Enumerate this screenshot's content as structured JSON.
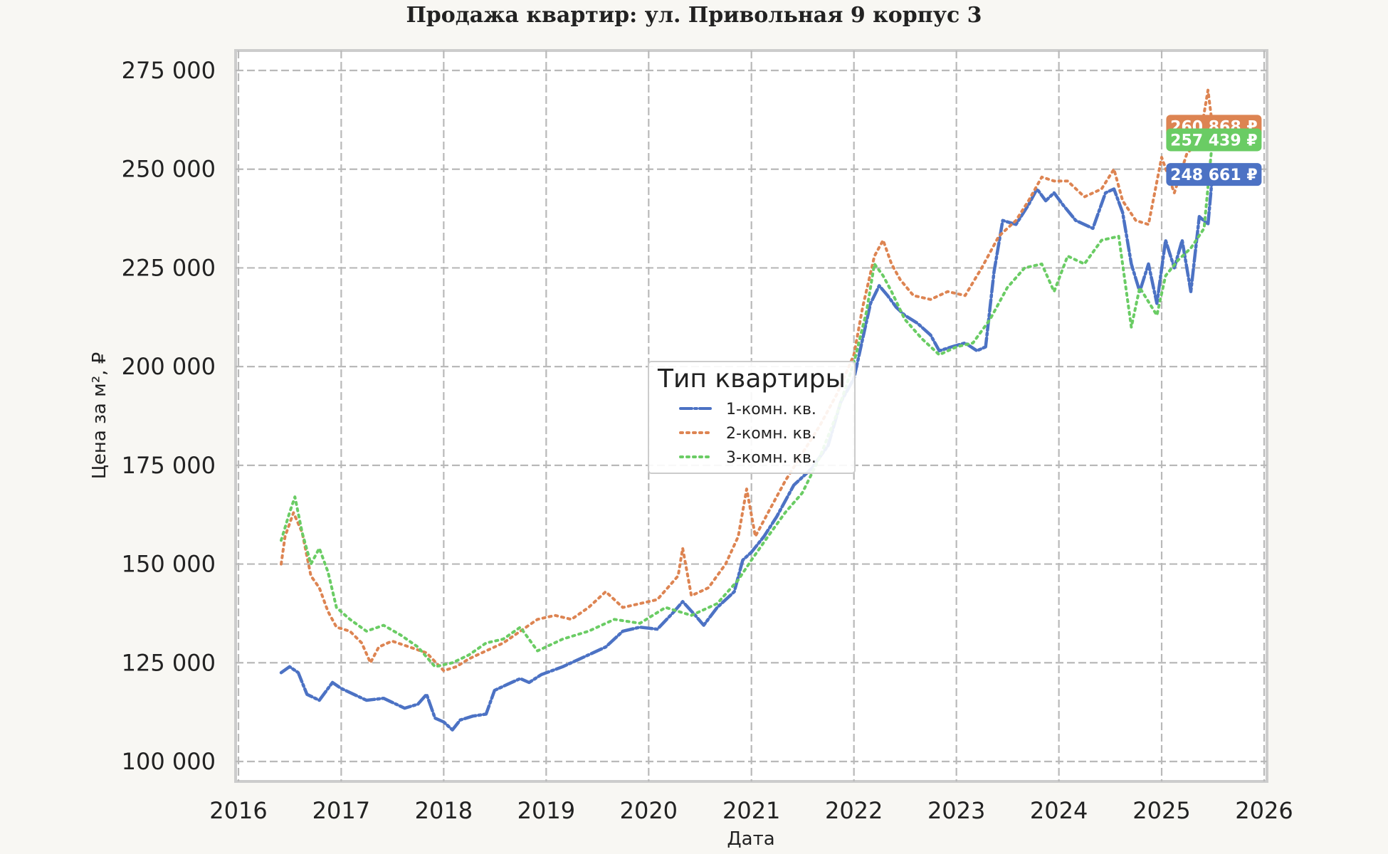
{
  "chart_data": {
    "type": "line",
    "title": "Продажа квартир: ул. Привольная 9 корпус 3",
    "xlabel": "Дата",
    "ylabel": "Цена за м², ₽",
    "xlim": [
      "2016-01-01",
      "2026-01-01"
    ],
    "ylim": [
      100000,
      275000
    ],
    "x_ticks": [
      "2016",
      "2017",
      "2018",
      "2019",
      "2020",
      "2021",
      "2022",
      "2023",
      "2024",
      "2025",
      "2026"
    ],
    "y_ticks": [
      "100 000",
      "125 000",
      "150 000",
      "175 000",
      "200 000",
      "225 000",
      "250 000",
      "275 000"
    ],
    "y_tick_values": [
      100000,
      125000,
      150000,
      175000,
      200000,
      225000,
      250000,
      275000
    ],
    "grid": true,
    "legend": {
      "title": "Тип квартиры",
      "placement": "center"
    },
    "series": [
      {
        "name": "1-комн. кв.",
        "color": "#4c72c4",
        "dash": "dashdot",
        "end_label": "248 661 ₽",
        "points": [
          [
            "2016-06-01",
            122500
          ],
          [
            "2016-07-01",
            124000
          ],
          [
            "2016-08-01",
            122500
          ],
          [
            "2016-09-01",
            117000
          ],
          [
            "2016-10-15",
            115500
          ],
          [
            "2016-12-01",
            120000
          ],
          [
            "2017-01-01",
            118500
          ],
          [
            "2017-02-15",
            117000
          ],
          [
            "2017-04-01",
            115500
          ],
          [
            "2017-06-01",
            116000
          ],
          [
            "2017-07-01",
            115000
          ],
          [
            "2017-08-15",
            113500
          ],
          [
            "2017-10-01",
            114500
          ],
          [
            "2017-11-01",
            117000
          ],
          [
            "2017-12-01",
            111000
          ],
          [
            "2018-01-01",
            110000
          ],
          [
            "2018-02-01",
            108000
          ],
          [
            "2018-03-01",
            110500
          ],
          [
            "2018-04-15",
            111500
          ],
          [
            "2018-06-01",
            112000
          ],
          [
            "2018-07-01",
            118000
          ],
          [
            "2018-08-15",
            119500
          ],
          [
            "2018-10-01",
            121000
          ],
          [
            "2018-11-01",
            120000
          ],
          [
            "2018-12-15",
            122000
          ],
          [
            "2019-03-01",
            124000
          ],
          [
            "2019-06-01",
            127000
          ],
          [
            "2019-08-01",
            129000
          ],
          [
            "2019-10-01",
            133000
          ],
          [
            "2019-12-01",
            134000
          ],
          [
            "2020-02-01",
            133500
          ],
          [
            "2020-04-01",
            138000
          ],
          [
            "2020-05-01",
            140500
          ],
          [
            "2020-06-15",
            137000
          ],
          [
            "2020-07-15",
            134500
          ],
          [
            "2020-09-01",
            139000
          ],
          [
            "2020-11-01",
            143000
          ],
          [
            "2020-12-01",
            151000
          ],
          [
            "2021-01-01",
            153000
          ],
          [
            "2021-02-15",
            157000
          ],
          [
            "2021-04-01",
            162000
          ],
          [
            "2021-06-01",
            170000
          ],
          [
            "2021-08-01",
            174000
          ],
          [
            "2021-10-01",
            180000
          ],
          [
            "2021-11-15",
            191000
          ],
          [
            "2022-01-01",
            197000
          ],
          [
            "2022-02-01",
            207000
          ],
          [
            "2022-03-01",
            216000
          ],
          [
            "2022-04-01",
            220500
          ],
          [
            "2022-05-01",
            218000
          ],
          [
            "2022-06-01",
            215000
          ],
          [
            "2022-07-01",
            213000
          ],
          [
            "2022-08-15",
            211000
          ],
          [
            "2022-10-01",
            208000
          ],
          [
            "2022-11-01",
            204000
          ],
          [
            "2022-12-15",
            205000
          ],
          [
            "2023-02-01",
            206000
          ],
          [
            "2023-03-15",
            204000
          ],
          [
            "2023-04-15",
            205000
          ],
          [
            "2023-05-15",
            224000
          ],
          [
            "2023-06-15",
            237000
          ],
          [
            "2023-08-01",
            236000
          ],
          [
            "2023-09-15",
            241000
          ],
          [
            "2023-10-15",
            245000
          ],
          [
            "2023-11-15",
            242000
          ],
          [
            "2023-12-15",
            244000
          ],
          [
            "2024-01-15",
            241000
          ],
          [
            "2024-03-01",
            237000
          ],
          [
            "2024-05-01",
            235000
          ],
          [
            "2024-06-15",
            244000
          ],
          [
            "2024-07-15",
            245000
          ],
          [
            "2024-08-15",
            239000
          ],
          [
            "2024-09-15",
            226000
          ],
          [
            "2024-10-15",
            219000
          ],
          [
            "2024-11-15",
            226000
          ],
          [
            "2024-12-15",
            216000
          ],
          [
            "2025-01-15",
            232000
          ],
          [
            "2025-02-15",
            225000
          ],
          [
            "2025-03-15",
            232000
          ],
          [
            "2025-04-15",
            219000
          ],
          [
            "2025-05-15",
            238000
          ],
          [
            "2025-06-15",
            236000
          ],
          [
            "2025-07-01",
            248661
          ]
        ]
      },
      {
        "name": "2-комн. кв.",
        "color": "#dd8452",
        "dash": "dotted",
        "end_label": "260 868 ₽",
        "points": [
          [
            "2016-06-01",
            150000
          ],
          [
            "2016-06-15",
            157000
          ],
          [
            "2016-07-15",
            163000
          ],
          [
            "2016-08-15",
            158000
          ],
          [
            "2016-09-15",
            147000
          ],
          [
            "2016-10-15",
            144000
          ],
          [
            "2016-11-15",
            138000
          ],
          [
            "2016-12-15",
            134000
          ],
          [
            "2017-02-01",
            133000
          ],
          [
            "2017-03-15",
            130000
          ],
          [
            "2017-04-15",
            125000
          ],
          [
            "2017-05-15",
            129000
          ],
          [
            "2017-07-01",
            130500
          ],
          [
            "2017-09-01",
            129000
          ],
          [
            "2017-11-01",
            127500
          ],
          [
            "2018-01-01",
            123000
          ],
          [
            "2018-02-15",
            124000
          ],
          [
            "2018-04-01",
            126000
          ],
          [
            "2018-06-01",
            128000
          ],
          [
            "2018-08-01",
            130000
          ],
          [
            "2018-10-01",
            133000
          ],
          [
            "2018-12-01",
            136000
          ],
          [
            "2019-02-01",
            137000
          ],
          [
            "2019-04-01",
            136000
          ],
          [
            "2019-06-01",
            139000
          ],
          [
            "2019-08-01",
            143000
          ],
          [
            "2019-10-01",
            139000
          ],
          [
            "2019-12-01",
            140000
          ],
          [
            "2020-02-01",
            141000
          ],
          [
            "2020-04-15",
            147000
          ],
          [
            "2020-05-01",
            154000
          ],
          [
            "2020-06-01",
            142000
          ],
          [
            "2020-08-01",
            144000
          ],
          [
            "2020-10-01",
            150000
          ],
          [
            "2020-11-15",
            157000
          ],
          [
            "2020-12-15",
            169000
          ],
          [
            "2021-01-15",
            157000
          ],
          [
            "2021-03-01",
            163000
          ],
          [
            "2021-05-01",
            171000
          ],
          [
            "2021-07-01",
            178000
          ],
          [
            "2021-09-01",
            185000
          ],
          [
            "2021-11-01",
            193000
          ],
          [
            "2022-01-01",
            203000
          ],
          [
            "2022-02-01",
            215000
          ],
          [
            "2022-03-15",
            228000
          ],
          [
            "2022-04-15",
            232000
          ],
          [
            "2022-05-15",
            226000
          ],
          [
            "2022-06-15",
            222000
          ],
          [
            "2022-08-01",
            218000
          ],
          [
            "2022-10-01",
            217000
          ],
          [
            "2022-12-01",
            219000
          ],
          [
            "2023-02-01",
            218000
          ],
          [
            "2023-04-01",
            225000
          ],
          [
            "2023-06-01",
            233000
          ],
          [
            "2023-08-01",
            237000
          ],
          [
            "2023-09-15",
            242000
          ],
          [
            "2023-11-01",
            248000
          ],
          [
            "2023-12-15",
            247000
          ],
          [
            "2024-02-01",
            247000
          ],
          [
            "2024-04-01",
            243000
          ],
          [
            "2024-06-01",
            245000
          ],
          [
            "2024-07-15",
            250000
          ],
          [
            "2024-08-15",
            242000
          ],
          [
            "2024-10-01",
            237000
          ],
          [
            "2024-11-15",
            236000
          ],
          [
            "2025-01-01",
            253000
          ],
          [
            "2025-02-15",
            244000
          ],
          [
            "2025-04-01",
            254000
          ],
          [
            "2025-05-15",
            257000
          ],
          [
            "2025-06-15",
            270000
          ],
          [
            "2025-07-01",
            260868
          ]
        ]
      },
      {
        "name": "3-комн. кв.",
        "color": "#6acc64",
        "dash": "dotted",
        "end_label": "257 439 ₽",
        "points": [
          [
            "2016-06-01",
            156000
          ],
          [
            "2016-07-01",
            163000
          ],
          [
            "2016-07-20",
            167000
          ],
          [
            "2016-08-15",
            158000
          ],
          [
            "2016-09-15",
            150000
          ],
          [
            "2016-10-15",
            154000
          ],
          [
            "2016-11-15",
            148000
          ],
          [
            "2016-12-15",
            139000
          ],
          [
            "2017-02-01",
            136000
          ],
          [
            "2017-04-01",
            133000
          ],
          [
            "2017-06-01",
            134500
          ],
          [
            "2017-08-01",
            132000
          ],
          [
            "2017-10-01",
            129000
          ],
          [
            "2017-12-01",
            124000
          ],
          [
            "2018-02-01",
            125000
          ],
          [
            "2018-04-01",
            127000
          ],
          [
            "2018-06-01",
            130000
          ],
          [
            "2018-08-01",
            131000
          ],
          [
            "2018-10-01",
            134000
          ],
          [
            "2018-12-01",
            128000
          ],
          [
            "2019-03-01",
            131000
          ],
          [
            "2019-06-01",
            133000
          ],
          [
            "2019-09-01",
            136000
          ],
          [
            "2019-12-01",
            135000
          ],
          [
            "2020-03-01",
            139000
          ],
          [
            "2020-06-01",
            137000
          ],
          [
            "2020-09-01",
            140000
          ],
          [
            "2020-11-15",
            146000
          ],
          [
            "2021-01-01",
            151000
          ],
          [
            "2021-03-01",
            157000
          ],
          [
            "2021-05-01",
            163000
          ],
          [
            "2021-07-01",
            168000
          ],
          [
            "2021-09-01",
            177000
          ],
          [
            "2021-11-01",
            188000
          ],
          [
            "2022-01-01",
            201000
          ],
          [
            "2022-02-15",
            214000
          ],
          [
            "2022-03-15",
            226000
          ],
          [
            "2022-04-15",
            223000
          ],
          [
            "2022-05-15",
            219000
          ],
          [
            "2022-07-01",
            212000
          ],
          [
            "2022-09-01",
            207000
          ],
          [
            "2022-11-01",
            203000
          ],
          [
            "2023-01-01",
            205000
          ],
          [
            "2023-03-01",
            206000
          ],
          [
            "2023-05-01",
            212000
          ],
          [
            "2023-07-01",
            220000
          ],
          [
            "2023-09-01",
            225000
          ],
          [
            "2023-11-01",
            226000
          ],
          [
            "2023-12-15",
            219000
          ],
          [
            "2024-02-01",
            228000
          ],
          [
            "2024-04-01",
            226000
          ],
          [
            "2024-06-01",
            232000
          ],
          [
            "2024-08-01",
            233000
          ],
          [
            "2024-09-15",
            210000
          ],
          [
            "2024-10-15",
            220000
          ],
          [
            "2024-12-15",
            213000
          ],
          [
            "2025-01-15",
            223000
          ],
          [
            "2025-03-01",
            227000
          ],
          [
            "2025-04-15",
            230000
          ],
          [
            "2025-06-01",
            235000
          ],
          [
            "2025-07-01",
            257439
          ]
        ]
      }
    ]
  }
}
